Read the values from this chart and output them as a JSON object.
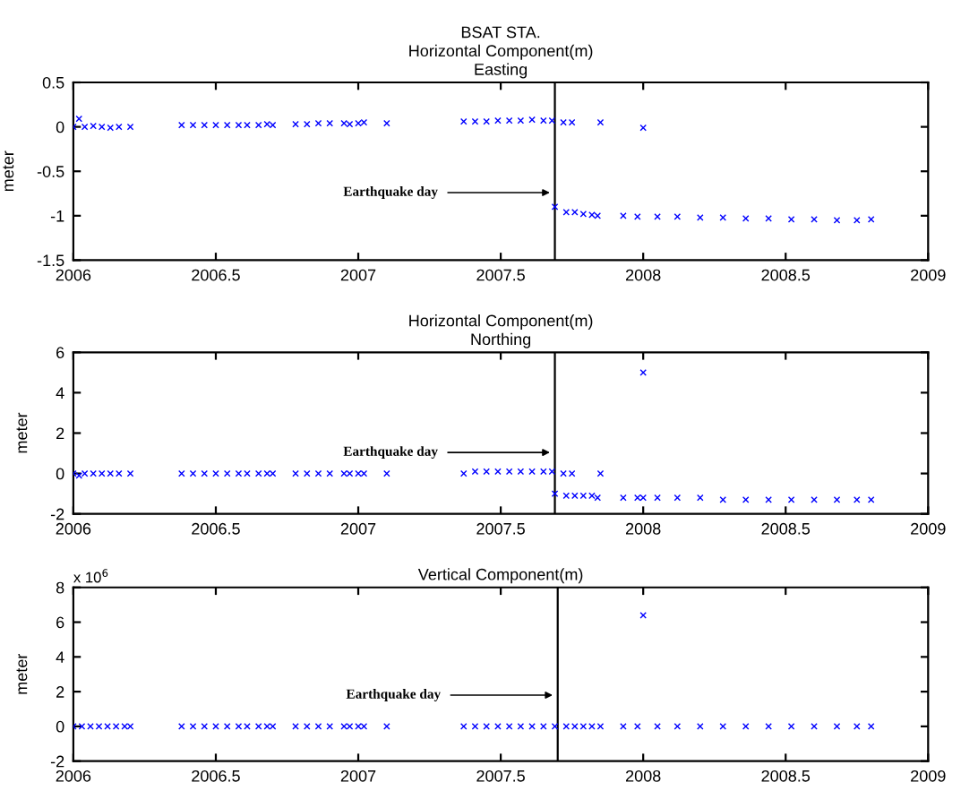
{
  "chart_data": [
    {
      "type": "scatter",
      "title": "BSAT STA.\nHorizontal Component(m)\nEasting",
      "ylabel": "meter",
      "marker": "cross",
      "grid": false,
      "legend": false,
      "xlim": [
        2006,
        2009
      ],
      "xticks": [
        2006,
        2006.5,
        2007,
        2007.5,
        2008,
        2008.5,
        2009
      ],
      "ylim": [
        -1.5,
        0.5
      ],
      "yticks": [
        -1.5,
        -1,
        -0.5,
        0,
        0.5
      ],
      "ref_lines": [
        {
          "axis": "x",
          "value": 2007.69,
          "color": "#000000",
          "label": "Earthquake day"
        }
      ],
      "series": [
        {
          "color": "#0000ff",
          "x": [
            2006.0,
            2006.02,
            2006.04,
            2006.07,
            2006.1,
            2006.13,
            2006.16,
            2006.2,
            2006.38,
            2006.42,
            2006.46,
            2006.5,
            2006.54,
            2006.58,
            2006.61,
            2006.65,
            2006.68,
            2006.7,
            2006.78,
            2006.82,
            2006.86,
            2006.9,
            2006.95,
            2006.97,
            2007.0,
            2007.02,
            2007.1,
            2007.37,
            2007.41,
            2007.45,
            2007.49,
            2007.53,
            2007.57,
            2007.61,
            2007.65,
            2007.68,
            2007.69,
            2007.72,
            2007.73,
            2007.75,
            2007.76,
            2007.79,
            2007.82,
            2007.84,
            2007.85,
            2007.93,
            2007.98,
            2008.0,
            2008.05,
            2008.12,
            2008.2,
            2008.28,
            2008.36,
            2008.44,
            2008.52,
            2008.6,
            2008.68,
            2008.75,
            2008.8
          ],
          "values": [
            0.0,
            0.09,
            0.0,
            0.01,
            0.0,
            -0.01,
            0.0,
            0.0,
            0.02,
            0.02,
            0.02,
            0.02,
            0.02,
            0.02,
            0.02,
            0.02,
            0.03,
            0.02,
            0.03,
            0.03,
            0.04,
            0.04,
            0.04,
            0.03,
            0.04,
            0.05,
            0.04,
            0.06,
            0.06,
            0.06,
            0.07,
            0.07,
            0.07,
            0.08,
            0.07,
            0.07,
            -0.9,
            0.05,
            -0.96,
            0.05,
            -0.96,
            -0.98,
            -0.99,
            -1.0,
            0.05,
            -1.0,
            -1.01,
            -0.01,
            -1.01,
            -1.01,
            -1.02,
            -1.02,
            -1.03,
            -1.03,
            -1.04,
            -1.04,
            -1.05,
            -1.05,
            -1.04
          ]
        }
      ]
    },
    {
      "type": "scatter",
      "title": "Horizontal Component(m)\nNorthing",
      "ylabel": "meter",
      "marker": "cross",
      "grid": false,
      "legend": false,
      "xlim": [
        2006,
        2009
      ],
      "xticks": [
        2006,
        2006.5,
        2007,
        2007.5,
        2008,
        2008.5,
        2009
      ],
      "ylim": [
        -2,
        6
      ],
      "yticks": [
        -2,
        0,
        2,
        4,
        6
      ],
      "ref_lines": [
        {
          "axis": "x",
          "value": 2007.69,
          "color": "#000000",
          "label": "Earthquake day"
        }
      ],
      "series": [
        {
          "color": "#0000ff",
          "x": [
            2006.0,
            2006.02,
            2006.04,
            2006.07,
            2006.1,
            2006.13,
            2006.16,
            2006.2,
            2006.38,
            2006.42,
            2006.46,
            2006.5,
            2006.54,
            2006.58,
            2006.61,
            2006.65,
            2006.68,
            2006.7,
            2006.78,
            2006.82,
            2006.86,
            2006.9,
            2006.95,
            2006.97,
            2007.0,
            2007.02,
            2007.1,
            2007.37,
            2007.41,
            2007.45,
            2007.49,
            2007.53,
            2007.57,
            2007.61,
            2007.65,
            2007.68,
            2007.69,
            2007.72,
            2007.73,
            2007.75,
            2007.76,
            2007.79,
            2007.82,
            2007.84,
            2007.85,
            2007.93,
            2007.98,
            2008.0,
            2008.0,
            2008.05,
            2008.12,
            2008.2,
            2008.28,
            2008.36,
            2008.44,
            2008.52,
            2008.6,
            2008.68,
            2008.75,
            2008.8
          ],
          "values": [
            0.0,
            -0.1,
            0.0,
            0.0,
            0.0,
            0.0,
            0.0,
            0.0,
            0.0,
            0.0,
            0.0,
            0.0,
            0.0,
            0.0,
            0.0,
            0.0,
            0.0,
            0.0,
            0.0,
            0.0,
            0.0,
            0.0,
            0.0,
            0.0,
            0.0,
            0.0,
            0.0,
            0.0,
            0.1,
            0.1,
            0.1,
            0.1,
            0.1,
            0.1,
            0.1,
            0.1,
            -1.0,
            0.0,
            -1.1,
            0.0,
            -1.1,
            -1.1,
            -1.1,
            -1.2,
            0.0,
            -1.2,
            -1.2,
            5.0,
            -1.2,
            -1.2,
            -1.2,
            -1.2,
            -1.3,
            -1.3,
            -1.3,
            -1.3,
            -1.3,
            -1.3,
            -1.3,
            -1.3
          ]
        }
      ]
    },
    {
      "type": "scatter",
      "title": "Vertical Component(m)",
      "ylabel": "meter",
      "marker": "cross",
      "grid": false,
      "legend": false,
      "xlim": [
        2006,
        2009
      ],
      "xticks": [
        2006,
        2006.5,
        2007,
        2007.5,
        2008,
        2008.5,
        2009
      ],
      "ylim": [
        -2,
        8
      ],
      "yticks": [
        -2,
        0,
        2,
        4,
        6,
        8
      ],
      "ref_lines": [
        {
          "axis": "x",
          "value": 2007.7,
          "color": "#000000",
          "label": "Earthquake day"
        }
      ],
      "annotations": [
        "x 10$^{6}$"
      ],
      "series": [
        {
          "color": "#0000ff",
          "x": [
            2006.0,
            2006.03,
            2006.06,
            2006.09,
            2006.12,
            2006.15,
            2006.18,
            2006.2,
            2006.38,
            2006.42,
            2006.46,
            2006.5,
            2006.54,
            2006.58,
            2006.61,
            2006.65,
            2006.68,
            2006.7,
            2006.78,
            2006.82,
            2006.86,
            2006.9,
            2006.95,
            2006.97,
            2007.0,
            2007.02,
            2007.1,
            2007.37,
            2007.41,
            2007.45,
            2007.49,
            2007.53,
            2007.57,
            2007.61,
            2007.65,
            2007.69,
            2007.73,
            2007.76,
            2007.79,
            2007.82,
            2007.85,
            2007.93,
            2007.98,
            2008.0,
            2008.05,
            2008.12,
            2008.2,
            2008.28,
            2008.36,
            2008.44,
            2008.52,
            2008.6,
            2008.68,
            2008.75,
            2008.8
          ],
          "values": [
            0,
            0,
            0,
            0,
            0,
            0,
            0,
            0,
            0,
            0,
            0,
            0,
            0,
            0,
            0,
            0,
            0,
            0,
            0,
            0,
            0,
            0,
            0,
            0,
            0,
            0,
            0,
            0,
            0,
            0,
            0,
            0,
            0,
            0,
            0,
            0,
            0,
            0,
            0,
            0,
            0,
            0,
            0,
            6.4,
            0,
            0,
            0,
            0,
            0,
            0,
            0,
            0,
            0,
            0,
            0
          ]
        }
      ]
    }
  ]
}
